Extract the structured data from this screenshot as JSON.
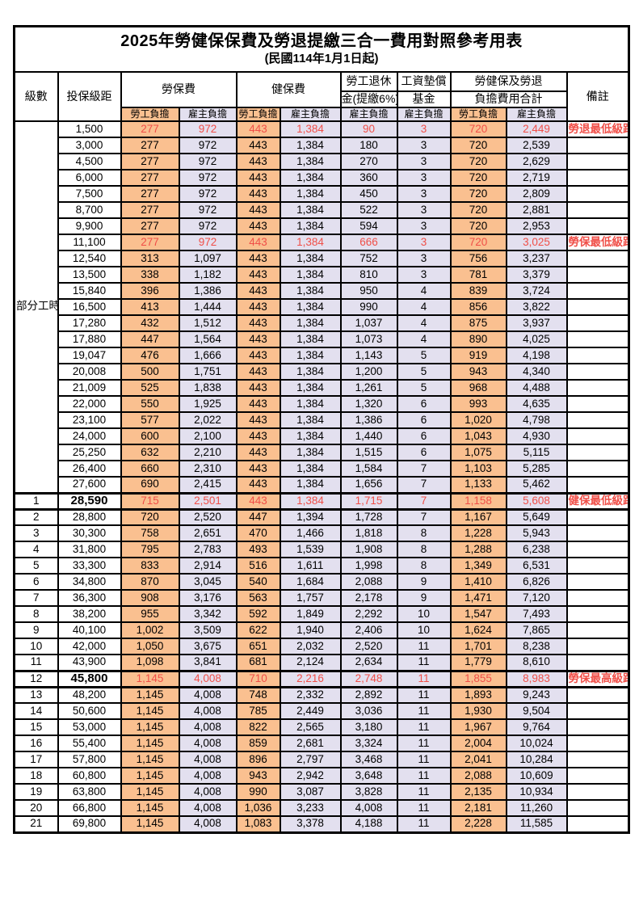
{
  "title": "2025年勞健保保費及勞退提繳三合一費用對照參考用表",
  "subtitle": "(民國114年1月1日起)",
  "header": {
    "level": "級數",
    "bracket": "投保級距",
    "labor_insurance": "勞保費",
    "health_insurance": "健保費",
    "pension_line1": "勞工退休",
    "pension_line2": "金(提繳6%)",
    "wage_fund_line1": "工資墊償",
    "wage_fund_line2": "基金",
    "total_line1": "勞健保及勞退",
    "total_line2": "負擔費用合計",
    "remarks": "備註",
    "employee_share": "勞工負擔",
    "employer_share": "雇主負擔"
  },
  "part_time_label": "部分工時",
  "part_time_rowspan": 23,
  "colors": {
    "employee_bg": "#FAC090",
    "employer_bg": "#E3E0EF",
    "highlight_red": "#F04F48",
    "border": "#000000"
  },
  "rows": [
    {
      "level": "",
      "bracket": "1,500",
      "values": [
        "277",
        "972",
        "443",
        "1,384",
        "90",
        "3",
        "720",
        "2,449"
      ],
      "remark": "勞退最低級距",
      "red": true
    },
    {
      "level": "",
      "bracket": "3,000",
      "values": [
        "277",
        "972",
        "443",
        "1,384",
        "180",
        "3",
        "720",
        "2,539"
      ],
      "remark": ""
    },
    {
      "level": "",
      "bracket": "4,500",
      "values": [
        "277",
        "972",
        "443",
        "1,384",
        "270",
        "3",
        "720",
        "2,629"
      ],
      "remark": ""
    },
    {
      "level": "",
      "bracket": "6,000",
      "values": [
        "277",
        "972",
        "443",
        "1,384",
        "360",
        "3",
        "720",
        "2,719"
      ],
      "remark": ""
    },
    {
      "level": "",
      "bracket": "7,500",
      "values": [
        "277",
        "972",
        "443",
        "1,384",
        "450",
        "3",
        "720",
        "2,809"
      ],
      "remark": ""
    },
    {
      "level": "",
      "bracket": "8,700",
      "values": [
        "277",
        "972",
        "443",
        "1,384",
        "522",
        "3",
        "720",
        "2,881"
      ],
      "remark": ""
    },
    {
      "level": "",
      "bracket": "9,900",
      "values": [
        "277",
        "972",
        "443",
        "1,384",
        "594",
        "3",
        "720",
        "2,953"
      ],
      "remark": ""
    },
    {
      "level": "",
      "bracket": "11,100",
      "values": [
        "277",
        "972",
        "443",
        "1,384",
        "666",
        "3",
        "720",
        "3,025"
      ],
      "remark": "勞保最低級距",
      "red": true
    },
    {
      "level": "",
      "bracket": "12,540",
      "values": [
        "313",
        "1,097",
        "443",
        "1,384",
        "752",
        "3",
        "756",
        "3,237"
      ],
      "remark": ""
    },
    {
      "level": "",
      "bracket": "13,500",
      "values": [
        "338",
        "1,182",
        "443",
        "1,384",
        "810",
        "3",
        "781",
        "3,379"
      ],
      "remark": ""
    },
    {
      "level": "",
      "bracket": "15,840",
      "values": [
        "396",
        "1,386",
        "443",
        "1,384",
        "950",
        "4",
        "839",
        "3,724"
      ],
      "remark": ""
    },
    {
      "level": "",
      "bracket": "16,500",
      "values": [
        "413",
        "1,444",
        "443",
        "1,384",
        "990",
        "4",
        "856",
        "3,822"
      ],
      "remark": ""
    },
    {
      "level": "",
      "bracket": "17,280",
      "values": [
        "432",
        "1,512",
        "443",
        "1,384",
        "1,037",
        "4",
        "875",
        "3,937"
      ],
      "remark": ""
    },
    {
      "level": "",
      "bracket": "17,880",
      "values": [
        "447",
        "1,564",
        "443",
        "1,384",
        "1,073",
        "4",
        "890",
        "4,025"
      ],
      "remark": ""
    },
    {
      "level": "",
      "bracket": "19,047",
      "values": [
        "476",
        "1,666",
        "443",
        "1,384",
        "1,143",
        "5",
        "919",
        "4,198"
      ],
      "remark": ""
    },
    {
      "level": "",
      "bracket": "20,008",
      "values": [
        "500",
        "1,751",
        "443",
        "1,384",
        "1,200",
        "5",
        "943",
        "4,340"
      ],
      "remark": ""
    },
    {
      "level": "",
      "bracket": "21,009",
      "values": [
        "525",
        "1,838",
        "443",
        "1,384",
        "1,261",
        "5",
        "968",
        "4,488"
      ],
      "remark": ""
    },
    {
      "level": "",
      "bracket": "22,000",
      "values": [
        "550",
        "1,925",
        "443",
        "1,384",
        "1,320",
        "6",
        "993",
        "4,635"
      ],
      "remark": ""
    },
    {
      "level": "",
      "bracket": "23,100",
      "values": [
        "577",
        "2,022",
        "443",
        "1,384",
        "1,386",
        "6",
        "1,020",
        "4,798"
      ],
      "remark": ""
    },
    {
      "level": "",
      "bracket": "24,000",
      "values": [
        "600",
        "2,100",
        "443",
        "1,384",
        "1,440",
        "6",
        "1,043",
        "4,930"
      ],
      "remark": ""
    },
    {
      "level": "",
      "bracket": "25,250",
      "values": [
        "632",
        "2,210",
        "443",
        "1,384",
        "1,515",
        "6",
        "1,075",
        "5,115"
      ],
      "remark": ""
    },
    {
      "level": "",
      "bracket": "26,400",
      "values": [
        "660",
        "2,310",
        "443",
        "1,384",
        "1,584",
        "7",
        "1,103",
        "5,285"
      ],
      "remark": ""
    },
    {
      "level": "",
      "bracket": "27,600",
      "values": [
        "690",
        "2,415",
        "443",
        "1,384",
        "1,656",
        "7",
        "1,133",
        "5,462"
      ],
      "remark": ""
    },
    {
      "level": "1",
      "bracket": "28,590",
      "values": [
        "715",
        "2,501",
        "443",
        "1,384",
        "1,715",
        "7",
        "1,158",
        "5,608"
      ],
      "remark": "健保最低級距",
      "red": true,
      "bold": true
    },
    {
      "level": "2",
      "bracket": "28,800",
      "values": [
        "720",
        "2,520",
        "447",
        "1,394",
        "1,728",
        "7",
        "1,167",
        "5,649"
      ],
      "remark": ""
    },
    {
      "level": "3",
      "bracket": "30,300",
      "values": [
        "758",
        "2,651",
        "470",
        "1,466",
        "1,818",
        "8",
        "1,228",
        "5,943"
      ],
      "remark": ""
    },
    {
      "level": "4",
      "bracket": "31,800",
      "values": [
        "795",
        "2,783",
        "493",
        "1,539",
        "1,908",
        "8",
        "1,288",
        "6,238"
      ],
      "remark": ""
    },
    {
      "level": "5",
      "bracket": "33,300",
      "values": [
        "833",
        "2,914",
        "516",
        "1,611",
        "1,998",
        "8",
        "1,349",
        "6,531"
      ],
      "remark": ""
    },
    {
      "level": "6",
      "bracket": "34,800",
      "values": [
        "870",
        "3,045",
        "540",
        "1,684",
        "2,088",
        "9",
        "1,410",
        "6,826"
      ],
      "remark": ""
    },
    {
      "level": "7",
      "bracket": "36,300",
      "values": [
        "908",
        "3,176",
        "563",
        "1,757",
        "2,178",
        "9",
        "1,471",
        "7,120"
      ],
      "remark": ""
    },
    {
      "level": "8",
      "bracket": "38,200",
      "values": [
        "955",
        "3,342",
        "592",
        "1,849",
        "2,292",
        "10",
        "1,547",
        "7,493"
      ],
      "remark": ""
    },
    {
      "level": "9",
      "bracket": "40,100",
      "values": [
        "1,002",
        "3,509",
        "622",
        "1,940",
        "2,406",
        "10",
        "1,624",
        "7,865"
      ],
      "remark": ""
    },
    {
      "level": "10",
      "bracket": "42,000",
      "values": [
        "1,050",
        "3,675",
        "651",
        "2,032",
        "2,520",
        "11",
        "1,701",
        "8,238"
      ],
      "remark": ""
    },
    {
      "level": "11",
      "bracket": "43,900",
      "values": [
        "1,098",
        "3,841",
        "681",
        "2,124",
        "2,634",
        "11",
        "1,779",
        "8,610"
      ],
      "remark": ""
    },
    {
      "level": "12",
      "bracket": "45,800",
      "values": [
        "1,145",
        "4,008",
        "710",
        "2,216",
        "2,748",
        "11",
        "1,855",
        "8,983"
      ],
      "remark": "勞保最高級距",
      "red": true,
      "bold": true
    },
    {
      "level": "13",
      "bracket": "48,200",
      "values": [
        "1,145",
        "4,008",
        "748",
        "2,332",
        "2,892",
        "11",
        "1,893",
        "9,243"
      ],
      "remark": ""
    },
    {
      "level": "14",
      "bracket": "50,600",
      "values": [
        "1,145",
        "4,008",
        "785",
        "2,449",
        "3,036",
        "11",
        "1,930",
        "9,504"
      ],
      "remark": ""
    },
    {
      "level": "15",
      "bracket": "53,000",
      "values": [
        "1,145",
        "4,008",
        "822",
        "2,565",
        "3,180",
        "11",
        "1,967",
        "9,764"
      ],
      "remark": ""
    },
    {
      "level": "16",
      "bracket": "55,400",
      "values": [
        "1,145",
        "4,008",
        "859",
        "2,681",
        "3,324",
        "11",
        "2,004",
        "10,024"
      ],
      "remark": ""
    },
    {
      "level": "17",
      "bracket": "57,800",
      "values": [
        "1,145",
        "4,008",
        "896",
        "2,797",
        "3,468",
        "11",
        "2,041",
        "10,284"
      ],
      "remark": ""
    },
    {
      "level": "18",
      "bracket": "60,800",
      "values": [
        "1,145",
        "4,008",
        "943",
        "2,942",
        "3,648",
        "11",
        "2,088",
        "10,609"
      ],
      "remark": ""
    },
    {
      "level": "19",
      "bracket": "63,800",
      "values": [
        "1,145",
        "4,008",
        "990",
        "3,087",
        "3,828",
        "11",
        "2,135",
        "10,934"
      ],
      "remark": ""
    },
    {
      "level": "20",
      "bracket": "66,800",
      "values": [
        "1,145",
        "4,008",
        "1,036",
        "3,233",
        "4,008",
        "11",
        "2,181",
        "11,260"
      ],
      "remark": ""
    },
    {
      "level": "21",
      "bracket": "69,800",
      "values": [
        "1,145",
        "4,008",
        "1,083",
        "3,378",
        "4,188",
        "11",
        "2,228",
        "11,585"
      ],
      "remark": ""
    }
  ]
}
